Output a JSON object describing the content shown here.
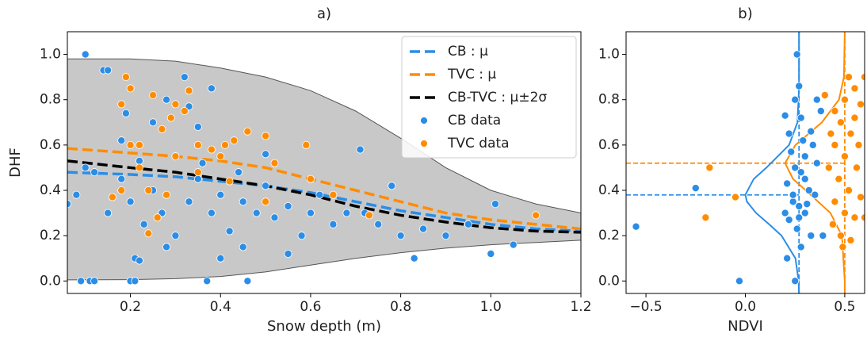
{
  "chart_data": [
    {
      "type": "scatter",
      "title": "a)",
      "xlabel": "Snow depth (m)",
      "ylabel": "DHF",
      "xlim": [
        0.06,
        1.2
      ],
      "ylim": [
        -0.055,
        1.1
      ],
      "xticks": [
        0.2,
        0.4,
        0.6,
        0.8,
        {
          "value": 1.0,
          "label": "1.0"
        },
        1.2
      ],
      "yticks": [
        {
          "value": 0,
          "label": "0.0"
        },
        0.2,
        0.4,
        0.6,
        0.8,
        {
          "value": 1.0,
          "label": "1.0"
        }
      ],
      "legend": "upper right",
      "series": [
        {
          "type": "band",
          "color": "#c8c8c8",
          "x": [
            0.06,
            0.2,
            0.3,
            0.4,
            0.5,
            0.6,
            0.7,
            0.8,
            0.9,
            1.0,
            1.1,
            1.2
          ],
          "lower": [
            0.005,
            0.006,
            0.01,
            0.02,
            0.04,
            0.07,
            0.1,
            0.125,
            0.145,
            0.16,
            0.17,
            0.18
          ],
          "upper": [
            0.98,
            0.98,
            0.97,
            0.94,
            0.9,
            0.84,
            0.75,
            0.63,
            0.5,
            0.4,
            0.34,
            0.3
          ]
        },
        {
          "type": "line",
          "name": "CB : μ",
          "color": "#2b8de6",
          "dash": true,
          "x": [
            0.06,
            0.2,
            0.3,
            0.4,
            0.5,
            0.6,
            0.7,
            0.8,
            0.9,
            1.0,
            1.1,
            1.2
          ],
          "values": [
            0.48,
            0.47,
            0.46,
            0.44,
            0.42,
            0.39,
            0.35,
            0.31,
            0.28,
            0.25,
            0.23,
            0.22
          ]
        },
        {
          "type": "line",
          "name": "TVC : μ",
          "color": "#ff8c00",
          "dash": true,
          "x": [
            0.06,
            0.2,
            0.3,
            0.4,
            0.5,
            0.6,
            0.7,
            0.8,
            0.9,
            1.0,
            1.1,
            1.2
          ],
          "values": [
            0.585,
            0.565,
            0.55,
            0.53,
            0.5,
            0.45,
            0.4,
            0.35,
            0.3,
            0.27,
            0.25,
            0.23
          ]
        },
        {
          "type": "line",
          "name": "CB-TVC : μ±2σ",
          "color": "#000000",
          "dash": true,
          "x": [
            0.06,
            0.2,
            0.3,
            0.4,
            0.5,
            0.6,
            0.7,
            0.8,
            0.9,
            1.0,
            1.1,
            1.2
          ],
          "values": [
            0.53,
            0.5,
            0.48,
            0.45,
            0.42,
            0.38,
            0.33,
            0.29,
            0.26,
            0.235,
            0.22,
            0.215
          ]
        },
        {
          "type": "scatter",
          "name": "CB data",
          "color": "#2b8de6",
          "x": [
            0.1,
            0.09,
            0.11,
            0.12,
            0.2,
            0.21,
            0.37,
            0.46,
            0.83,
            1.0,
            0.06,
            0.08,
            0.1,
            0.12,
            0.14,
            0.15,
            0.18,
            0.19,
            0.22,
            0.25,
            0.28,
            0.3,
            0.32,
            0.33,
            0.35,
            0.38,
            0.2,
            0.23,
            0.25,
            0.27,
            0.3,
            0.33,
            0.35,
            0.38,
            0.4,
            0.42,
            0.45,
            0.48,
            0.5,
            0.52,
            0.55,
            0.58,
            0.6,
            0.62,
            0.65,
            0.68,
            0.71,
            0.72,
            0.75,
            0.78,
            0.8,
            0.85,
            0.9,
            0.95,
            1.01,
            1.05,
            0.15,
            0.18,
            0.21,
            0.22,
            0.28,
            0.4,
            0.45,
            0.55,
            0.36,
            0.44,
            0.5
          ],
          "values": [
            1.0,
            0,
            0,
            0,
            0,
            0,
            0,
            0,
            0.1,
            0.12,
            0.34,
            0.38,
            0.5,
            0.48,
            0.93,
            0.93,
            0.62,
            0.74,
            0.53,
            0.7,
            0.8,
            0.55,
            0.9,
            0.77,
            0.68,
            0.85,
            0.35,
            0.25,
            0.4,
            0.3,
            0.2,
            0.35,
            0.45,
            0.3,
            0.38,
            0.22,
            0.35,
            0.3,
            0.42,
            0.28,
            0.33,
            0.2,
            0.3,
            0.38,
            0.25,
            0.3,
            0.58,
            0.3,
            0.25,
            0.42,
            0.2,
            0.23,
            0.2,
            0.25,
            0.34,
            0.16,
            0.3,
            0.45,
            0.1,
            0.09,
            0.15,
            0.1,
            0.15,
            0.12,
            0.52,
            0.48,
            0.56
          ]
        },
        {
          "type": "scatter",
          "name": "TVC data",
          "color": "#ff8c00",
          "x": [
            0.19,
            0.2,
            0.18,
            0.22,
            0.25,
            0.27,
            0.29,
            0.3,
            0.32,
            0.33,
            0.35,
            0.38,
            0.4,
            0.43,
            0.46,
            0.5,
            0.52,
            0.59,
            0.6,
            0.65,
            0.2,
            0.22,
            0.24,
            0.26,
            0.28,
            0.3,
            0.24,
            0.16,
            0.18,
            0.41,
            0.5,
            0.73,
            1.1,
            0.35,
            0.42
          ],
          "values": [
            0.9,
            0.85,
            0.78,
            0.6,
            0.82,
            0.67,
            0.72,
            0.78,
            0.75,
            0.84,
            0.6,
            0.58,
            0.55,
            0.62,
            0.66,
            0.64,
            0.52,
            0.6,
            0.45,
            0.38,
            0.6,
            0.5,
            0.4,
            0.28,
            0.38,
            0.55,
            0.21,
            0.37,
            0.4,
            0.6,
            0.35,
            0.29,
            0.29,
            0.48,
            0.44
          ]
        }
      ]
    },
    {
      "type": "scatter",
      "title": "b)",
      "xlabel": "NDVI",
      "xlim": [
        -0.6,
        0.6
      ],
      "ylim": [
        -0.055,
        1.1
      ],
      "xticks": [
        {
          "value": -0.5,
          "label": "−0.5"
        },
        {
          "value": 0,
          "label": "0.0"
        },
        0.5
      ],
      "yticks": [
        {
          "value": 0,
          "label": "0.0"
        },
        0.2,
        0.4,
        0.6,
        0.8,
        {
          "value": 1.0,
          "label": "1.0"
        }
      ],
      "series": [
        {
          "type": "ref",
          "color": "#2b8de6",
          "x": 0.27,
          "y": 0.38
        },
        {
          "type": "ref",
          "color": "#ff8c00",
          "x": 0.5,
          "y": 0.52
        },
        {
          "type": "line",
          "color": "#2b8de6",
          "x": [
            0.27,
            0.268,
            0.252,
            0.182,
            0.12,
            0.054,
            0.008,
            0,
            0.042,
            0.106,
            0.22,
            0.262,
            0.27,
            0.27
          ],
          "values": [
            -0.055,
            0,
            0.1,
            0.2,
            0.25,
            0.3,
            0.35,
            0.38,
            0.45,
            0.5,
            0.6,
            0.7,
            0.85,
            1.1
          ]
        },
        {
          "type": "line",
          "color": "#ff8c00",
          "x": [
            0.5,
            0.5,
            0.486,
            0.428,
            0.304,
            0.24,
            0.2,
            0.252,
            0.385,
            0.471,
            0.496,
            0.5
          ],
          "values": [
            -0.055,
            0,
            0.2,
            0.3,
            0.4,
            0.45,
            0.52,
            0.6,
            0.7,
            0.8,
            0.9,
            1.1
          ]
        },
        {
          "type": "scatter",
          "color": "#2b8de6",
          "x": [
            -0.55,
            -0.25,
            -0.03,
            0.25,
            0.26,
            0.27,
            0.25,
            0.2,
            0.22,
            0.23,
            0.25,
            0.28,
            0.3,
            0.32,
            0.35,
            0.24,
            0.27,
            0.3,
            0.22,
            0.26,
            0.33,
            0.21,
            0.28,
            0.36,
            0.38,
            0.34,
            0.3,
            0.29,
            0.36,
            0.21,
            0.24,
            0.31,
            0.27,
            0.39,
            0.2,
            0.28,
            0.33
          ],
          "values": [
            0.24,
            0.41,
            0,
            0,
            1.0,
            0.86,
            0.8,
            0.73,
            0.65,
            0.57,
            0.5,
            0.48,
            0.45,
            0.4,
            0.38,
            0.35,
            0.33,
            0.3,
            0.27,
            0.23,
            0.2,
            0.1,
            0.15,
            0.8,
            0.75,
            0.6,
            0.55,
            0.62,
            0.52,
            0.43,
            0.38,
            0.34,
            0.28,
            0.2,
            0.3,
            0.72,
            0.66
          ]
        },
        {
          "type": "scatter",
          "color": "#ff8c00",
          "x": [
            0.6,
            0.55,
            0.5,
            0.45,
            0.48,
            0.53,
            0.57,
            0.45,
            0.5,
            0.56,
            0.42,
            0.47,
            0.52,
            0.58,
            0.45,
            0.5,
            0.55,
            0.6,
            0.44,
            0.48,
            0.53,
            -0.18,
            -0.2,
            -0.05,
            0.55,
            0.4,
            0.58,
            0.43,
            0.52,
            0.49
          ],
          "values": [
            0.9,
            0.85,
            0.8,
            0.75,
            0.7,
            0.65,
            0.6,
            0.6,
            0.55,
            0.5,
            0.5,
            0.45,
            0.4,
            0.37,
            0.35,
            0.3,
            0.28,
            0.28,
            0.25,
            0.2,
            0.18,
            0.5,
            0.28,
            0.37,
            0.72,
            0.82,
            0.78,
            0.65,
            0.9,
            0.15
          ]
        }
      ]
    }
  ]
}
